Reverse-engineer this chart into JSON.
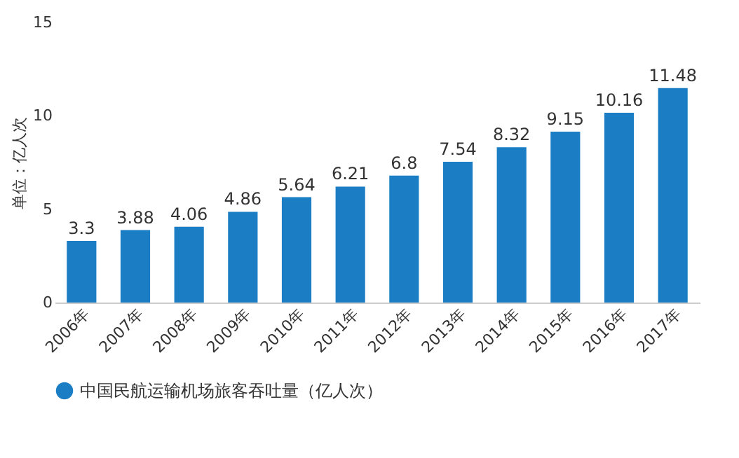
{
  "chart_data": {
    "type": "bar",
    "ylabel": "单位：亿人次",
    "categories": [
      "2006年",
      "2007年",
      "2008年",
      "2009年",
      "2010年",
      "2011年",
      "2012年",
      "2013年",
      "2014年",
      "2015年",
      "2016年",
      "2017年"
    ],
    "series": [
      {
        "name": "中国民航运输机场旅客吞吐量（亿人次）",
        "color": "#1b7dc3",
        "values": [
          3.3,
          3.88,
          4.06,
          4.86,
          5.64,
          6.21,
          6.8,
          7.54,
          8.32,
          9.15,
          10.16,
          11.48
        ]
      }
    ],
    "ylim": [
      0,
      15
    ],
    "yticks": [
      0,
      5,
      10,
      15
    ],
    "data_labels": true,
    "legend": "bottom",
    "grid": false
  }
}
